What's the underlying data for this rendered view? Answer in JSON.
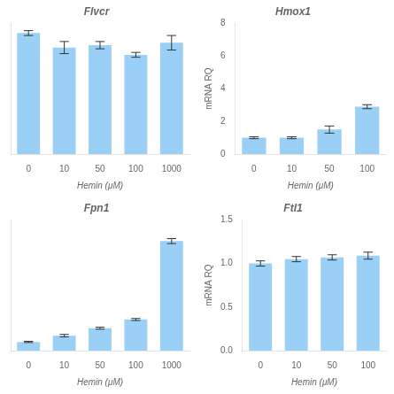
{
  "chart_data": [
    {
      "type": "bar",
      "title": "Flvcr",
      "categories": [
        "0",
        "10",
        "50",
        "100",
        "1000"
      ],
      "values": [
        1.0,
        0.88,
        0.9,
        0.82,
        0.92
      ],
      "errors": [
        0.02,
        0.05,
        0.03,
        0.02,
        0.06
      ],
      "ylim": [
        0,
        1.08
      ],
      "xlabel": "Hemin (μM)",
      "tick_labels": "x",
      "grid": false
    },
    {
      "type": "bar",
      "title": "Hmox1",
      "categories": [
        "0",
        "10",
        "50",
        "100"
      ],
      "values": [
        1.0,
        1.0,
        1.5,
        2.9
      ],
      "errors": [
        0.06,
        0.06,
        0.22,
        0.12
      ],
      "ylim": [
        0,
        8
      ],
      "yticks": [
        0,
        2,
        4,
        6,
        8
      ],
      "ylabel": "mRNA RQ",
      "xlabel": "Hemin (μM)",
      "grid": false
    },
    {
      "type": "bar",
      "title": "Fpn1",
      "categories": [
        "0",
        "10",
        "50",
        "100",
        "1000"
      ],
      "values": [
        0.07,
        0.12,
        0.18,
        0.25,
        0.88
      ],
      "errors": [
        0.005,
        0.01,
        0.008,
        0.008,
        0.02
      ],
      "ylim": [
        0,
        1.05
      ],
      "xlabel": "Hemin (μM)",
      "tick_labels": "x",
      "grid": false
    },
    {
      "type": "bar",
      "title": "Ftl1",
      "categories": [
        "0",
        "10",
        "50",
        "100"
      ],
      "values": [
        1.0,
        1.05,
        1.07,
        1.09
      ],
      "errors": [
        0.03,
        0.03,
        0.03,
        0.04
      ],
      "ylim": [
        0,
        1.5
      ],
      "yticks": [
        {
          "value": 0.0,
          "label": "0.0"
        },
        {
          "value": 0.5,
          "label": "0.5"
        },
        {
          "value": 1.0,
          "label": "1.0"
        },
        {
          "value": 1.5,
          "label": "1.5"
        }
      ],
      "ylabel": "mRNA RQ",
      "xlabel": "Hemin (μM)",
      "grid": false
    }
  ]
}
